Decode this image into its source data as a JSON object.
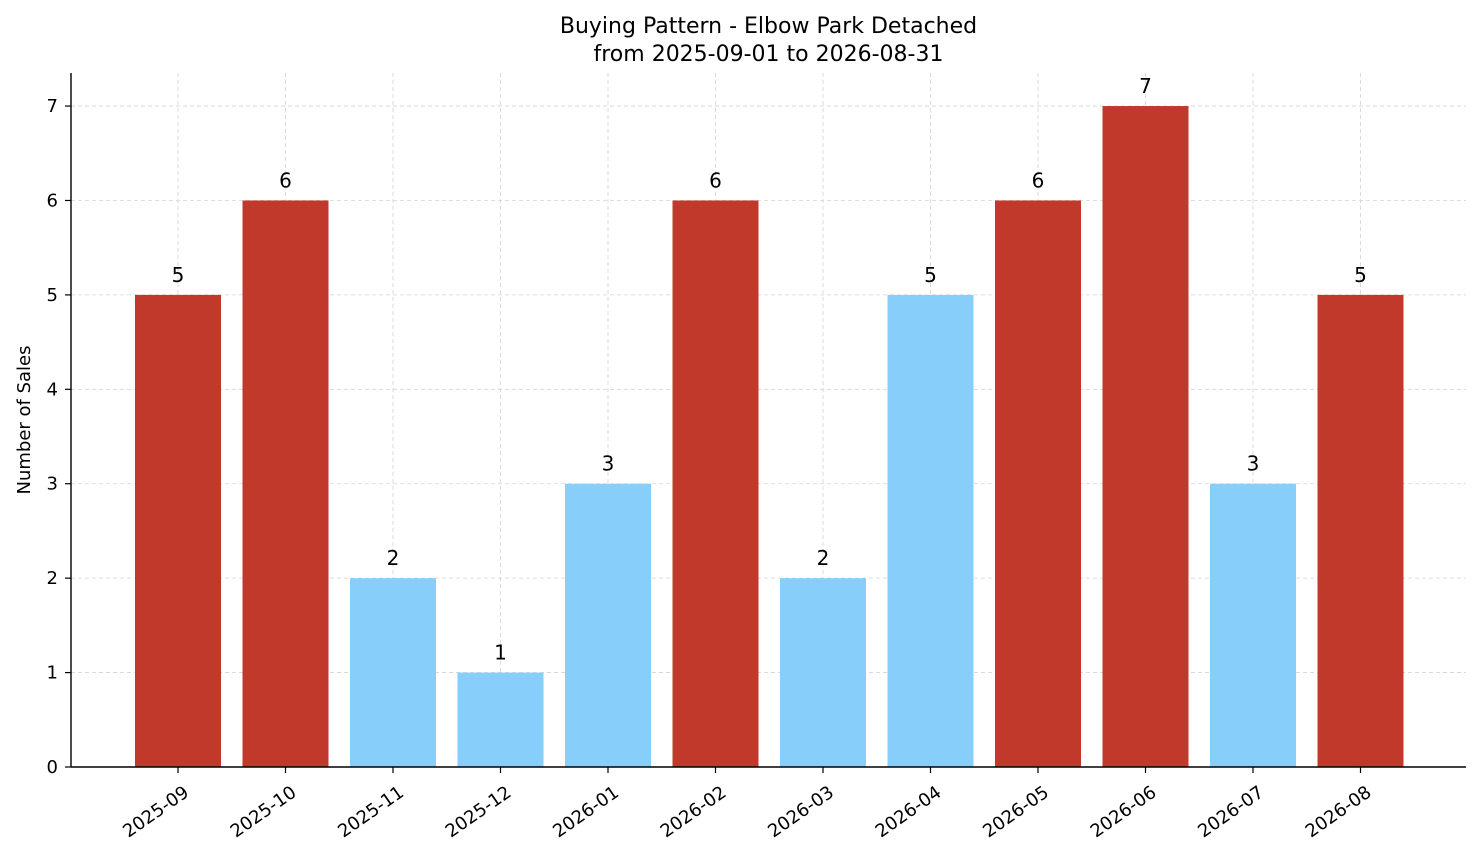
{
  "chart_data": {
    "type": "bar",
    "title": "Buying Pattern - Elbow Park Detached",
    "subtitle": "from 2025-09-01 to 2026-08-31",
    "xlabel": "",
    "ylabel": "Number of Sales",
    "categories": [
      "2025-09",
      "2025-10",
      "2025-11",
      "2025-12",
      "2026-01",
      "2026-02",
      "2026-03",
      "2026-04",
      "2026-05",
      "2026-06",
      "2026-07",
      "2026-08"
    ],
    "values": [
      5,
      6,
      2,
      1,
      3,
      6,
      2,
      5,
      6,
      7,
      3,
      5
    ],
    "bar_colors": [
      "#c0392b",
      "#c0392b",
      "#87cefa",
      "#87cefa",
      "#87cefa",
      "#c0392b",
      "#87cefa",
      "#87cefa",
      "#c0392b",
      "#c0392b",
      "#87cefa",
      "#c0392b"
    ],
    "y_ticks": [
      0,
      1,
      2,
      3,
      4,
      5,
      6,
      7
    ],
    "ylim": [
      0,
      7.35
    ],
    "grid": true,
    "legend": "none"
  }
}
